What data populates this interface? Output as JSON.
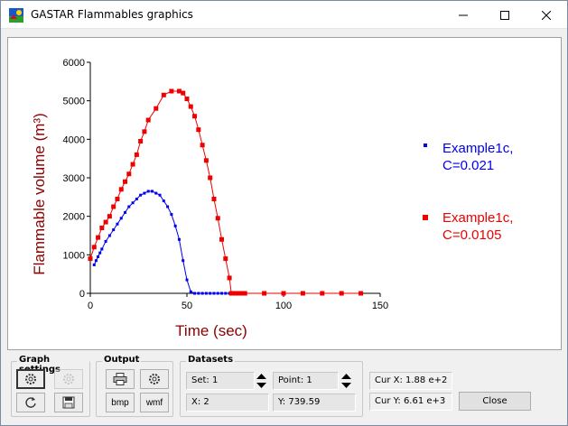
{
  "window": {
    "title": "GASTAR Flammables graphics",
    "controls": [
      "minimize",
      "maximize",
      "close"
    ]
  },
  "chart_data": {
    "type": "line",
    "xlabel": "Time (sec)",
    "ylabel": "Flammable volume (m³)",
    "xlim": [
      0,
      150
    ],
    "ylim": [
      0,
      6000
    ],
    "xticks": [
      "0",
      "50",
      "100",
      "150"
    ],
    "yticks": [
      "0",
      "1000",
      "2000",
      "3000",
      "4000",
      "5000",
      "6000"
    ],
    "legend_position": "right",
    "series": [
      {
        "name": "Example1c, C=0.021",
        "legend_line1": "Example1c,",
        "legend_line2": "C=0.021",
        "color": "#0000ee",
        "marker": "dot",
        "x": [
          2,
          3,
          4,
          5,
          6,
          8,
          10,
          12,
          14,
          16,
          18,
          20,
          22,
          24,
          26,
          28,
          30,
          32,
          34,
          36,
          38,
          40,
          42,
          44,
          46,
          48,
          50,
          52,
          54,
          56,
          58,
          60,
          62,
          64,
          66,
          68,
          70,
          72
        ],
        "y": [
          739.59,
          850,
          950,
          1050,
          1150,
          1350,
          1500,
          1650,
          1800,
          1950,
          2100,
          2250,
          2350,
          2450,
          2550,
          2600,
          2650,
          2650,
          2600,
          2550,
          2400,
          2250,
          2050,
          1750,
          1400,
          850,
          350,
          40,
          0,
          0,
          0,
          0,
          0,
          0,
          0,
          0,
          0,
          0
        ]
      },
      {
        "name": "Example1c, C=0.0105",
        "legend_line1": "Example1c,",
        "legend_line2": "C=0.0105",
        "color": "#ee0000",
        "marker": "square",
        "x": [
          0,
          2,
          4,
          6,
          8,
          10,
          12,
          14,
          16,
          18,
          20,
          22,
          24,
          26,
          28,
          30,
          34,
          38,
          42,
          46,
          48,
          50,
          52,
          54,
          56,
          58,
          60,
          62,
          64,
          66,
          68,
          70,
          72,
          73,
          74,
          75,
          76,
          78,
          80,
          90,
          100,
          110,
          120,
          130,
          140
        ],
        "y": [
          900,
          1200,
          1450,
          1700,
          1850,
          2000,
          2250,
          2450,
          2700,
          2900,
          3100,
          3350,
          3600,
          3950,
          4200,
          4500,
          4800,
          5150,
          5250,
          5250,
          5200,
          5050,
          4850,
          4600,
          4250,
          3850,
          3450,
          3000,
          2450,
          1950,
          1400,
          900,
          400,
          0,
          0,
          0,
          0,
          0,
          0,
          0,
          0,
          0,
          0,
          0,
          0
        ]
      }
    ]
  },
  "panels": {
    "graph_settings": {
      "label": "Graph settings"
    },
    "output": {
      "label": "Output",
      "bmp_label": "bmp",
      "wmf_label": "wmf"
    },
    "datasets": {
      "label": "Datasets",
      "set_text": "Set: 1",
      "point_text": "Point: 1",
      "x_text": "X: 2",
      "y_text": "Y: 739.59"
    },
    "cursor": {
      "cur_x_text": "Cur X: 1.88 e+2",
      "cur_y_text": "Cur Y: 6.61 e+3",
      "close_label": "Close"
    }
  }
}
